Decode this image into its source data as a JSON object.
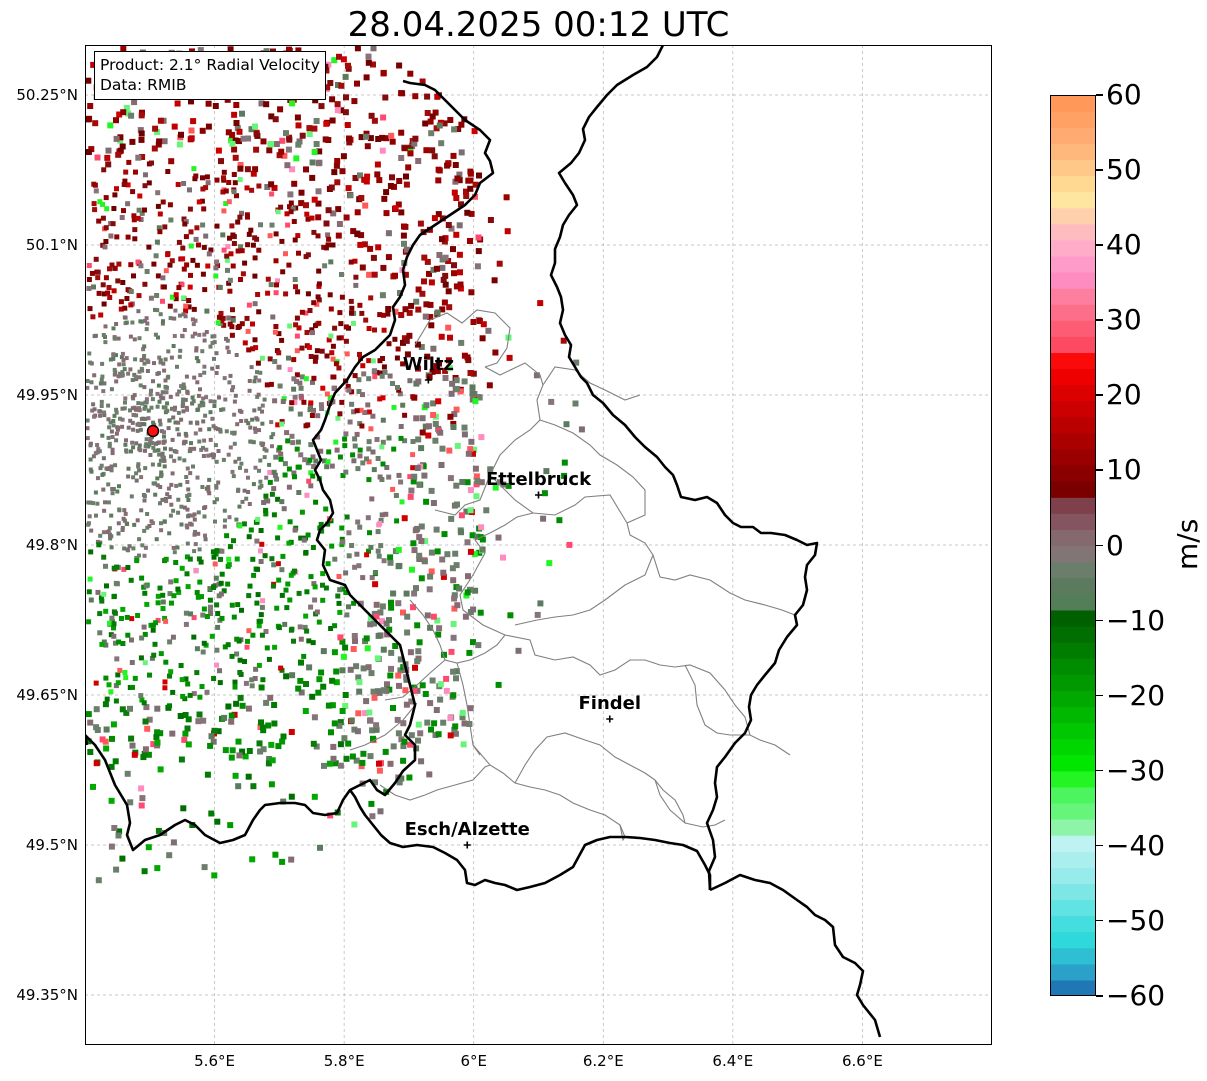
{
  "title": "28.04.2025 00:12 UTC",
  "info": {
    "product": "Product: 2.1° Radial Velocity",
    "data": "Data: RMIB"
  },
  "map": {
    "lat_ticks": [
      "50.25°N",
      "50.1°N",
      "49.95°N",
      "49.8°N",
      "49.65°N",
      "49.5°N",
      "49.35°N"
    ],
    "lon_ticks": [
      "5.6°E",
      "5.8°E",
      "6°E",
      "6.2°E",
      "6.4°E",
      "6.6°E"
    ],
    "cities": [
      {
        "name": "Wiltz",
        "lon": 5.93,
        "lat": 49.965
      },
      {
        "name": "Ettelbruck",
        "lon": 6.1,
        "lat": 49.85
      },
      {
        "name": "Findel",
        "lon": 6.21,
        "lat": 49.626
      },
      {
        "name": "Esch/Alzette",
        "lon": 5.99,
        "lat": 49.5
      }
    ],
    "radar_site": {
      "lon": 5.505,
      "lat": 49.914
    },
    "extent": {
      "lon_min": 5.4,
      "lon_max": 6.8,
      "lat_min": 49.3,
      "lat_max": 50.3
    },
    "gridlines": true
  },
  "colorbar": {
    "unit": "m/s",
    "ticks": [
      "60",
      "50",
      "40",
      "30",
      "20",
      "10",
      "0",
      "−10",
      "−20",
      "−30",
      "−40",
      "−50",
      "−60"
    ],
    "min": -60,
    "max": 60,
    "colors": [
      "#1f77b4",
      "#2ba0c8",
      "#2ec0d2",
      "#2ed8db",
      "#45dede",
      "#62e3e3",
      "#7fe6e6",
      "#97ebeb",
      "#abeeee",
      "#bff2f2",
      "#8ef5a8",
      "#66f57a",
      "#4cf55f",
      "#22f522",
      "#00e600",
      "#00d600",
      "#00c800",
      "#00b800",
      "#00a800",
      "#009a00",
      "#008c00",
      "#007d00",
      "#006e00",
      "#006000",
      "#547e57",
      "#5c7a5e",
      "#6a7e6b",
      "#827576",
      "#86686f",
      "#845460",
      "#7f404c",
      "#7a0000",
      "#8a0000",
      "#9a0000",
      "#aa0000",
      "#bb0000",
      "#cc0000",
      "#dd0000",
      "#ee0000",
      "#fb0a0a",
      "#fc4a60",
      "#fc5c74",
      "#fd6e8a",
      "#fe7ea0",
      "#fe8cc0",
      "#fe9bc8",
      "#ffacc8",
      "#ffbcc0",
      "#ffd0ac",
      "#ffe6a0",
      "#ffd892",
      "#ffc888",
      "#ffb87c",
      "#ffaa70",
      "#ffa064",
      "#ff9858"
    ]
  }
}
